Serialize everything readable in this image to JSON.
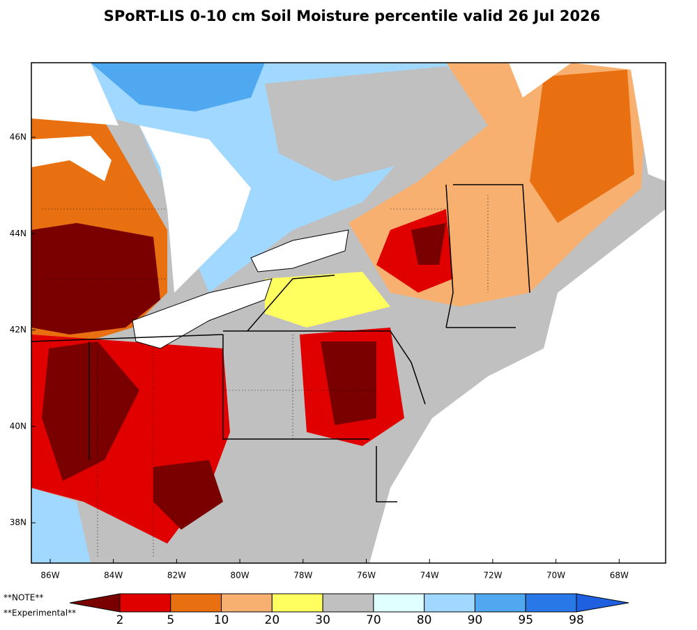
{
  "title": "SPoRT-LIS 0-10 cm Soil Moisture percentile valid 26 Jul 2026",
  "lat_labels": [
    "46N",
    "44N",
    "42N",
    "40N",
    "38N"
  ],
  "lon_labels": [
    "86W",
    "84W",
    "82W",
    "80W",
    "78W",
    "76W",
    "74W",
    "72W",
    "70W",
    "68W"
  ],
  "notes": [
    "**NOTE**",
    "**Experimental**"
  ],
  "colorbar": {
    "ticks": [
      2,
      5,
      10,
      20,
      30,
      70,
      80,
      90,
      95,
      98
    ],
    "colors": [
      "#7a0000",
      "#e00000",
      "#e87010",
      "#f8b070",
      "#ffff60",
      "#c0c0c0",
      "#e0ffff",
      "#a0d8ff",
      "#50a8f0",
      "#2878e8",
      "#1e60e0"
    ]
  }
}
